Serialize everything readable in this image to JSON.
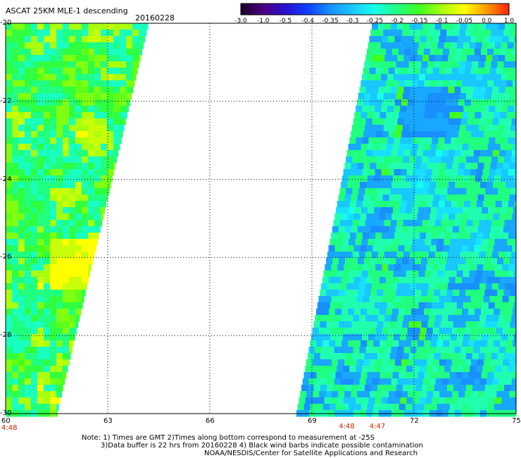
{
  "title": "ASCAT 25KM MLE-1 descending",
  "date": "20160228",
  "colorbar": {
    "labels": [
      "-3.0",
      "-1.0",
      "-0.5",
      "-0.4",
      "-0.35",
      "-0.3",
      "-0.25",
      "-0.2",
      "-0.15",
      "-0.1",
      "-0.05",
      "0.0",
      "1.0"
    ],
    "colors": [
      "#1a0024",
      "#4b0080",
      "#2a10d0",
      "#1040ff",
      "#1890ff",
      "#18c8ff",
      "#18ffe8",
      "#20ff80",
      "#40ff20",
      "#a8ff10",
      "#ffff00",
      "#ff9a00",
      "#ff2010"
    ]
  },
  "latitudes": [
    "-20",
    "-22",
    "-24",
    "-26",
    "-28",
    "-30"
  ],
  "longitudes": [
    "60",
    "63",
    "66",
    "69",
    "72",
    "75"
  ],
  "times": [
    {
      "label": "4:48",
      "lon": 60
    },
    {
      "label": "4:48",
      "lon": 70
    },
    {
      "label": "4:47",
      "lon": 70.9
    }
  ],
  "notes": {
    "line1": "Note: 1) Times are GMT 2)Times along bottom correspond to measurement at -25S",
    "line2": "3)Data buffer is 22 hrs from 20160228 4) Black wind barbs indicate possible contamination",
    "line3": "NOAA/NESDIS/Center for Satellite Applications and Research"
  }
}
